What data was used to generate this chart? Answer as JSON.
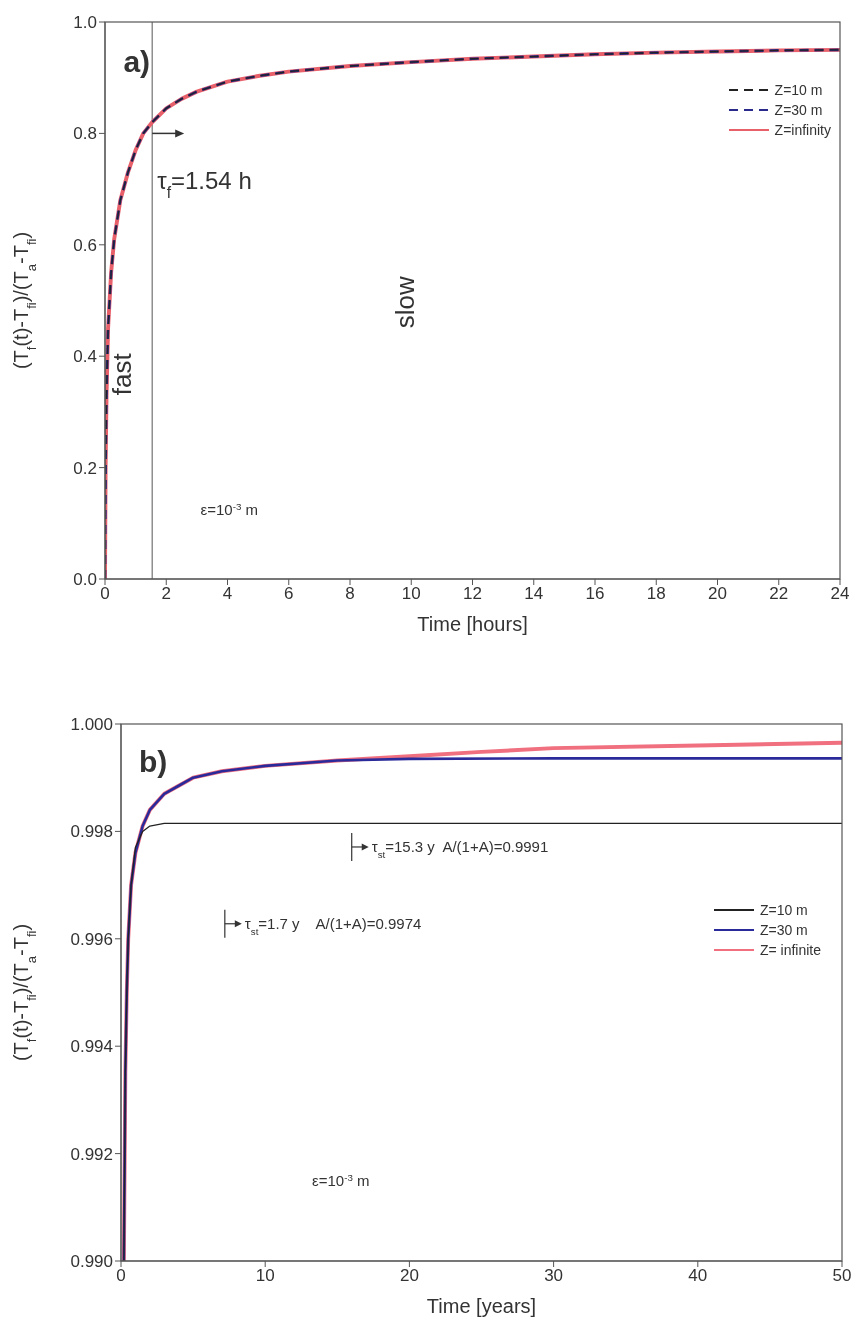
{
  "chart_data": [
    {
      "type": "line",
      "xlabel": "Time [hours]",
      "ylabel": "(T$_{f}$(t)-T$_{fi}$)/(T$_{a}$-T$_{fi}$)",
      "xlim": [
        0,
        24
      ],
      "xticks": [
        0,
        2,
        4,
        6,
        8,
        10,
        12,
        14,
        16,
        18,
        20,
        22,
        24
      ],
      "ylim": [
        0,
        1
      ],
      "yticks": [
        {
          "value": 0,
          "label": "0.0"
        },
        {
          "value": 0.2,
          "label": "0.2"
        },
        {
          "value": 0.4,
          "label": "0.4"
        },
        {
          "value": 0.6,
          "label": "0.6"
        },
        {
          "value": 0.8,
          "label": "0.8"
        },
        {
          "value": 1,
          "label": "1.0"
        }
      ],
      "legend": "top right",
      "grid": false,
      "marker": "none",
      "ref_lines": [
        {
          "axis": "x",
          "value": 1.54,
          "label": "τ$_{f}$=1.54 h",
          "color": "#555555"
        }
      ],
      "annotations": [
        "a)",
        "fast",
        "slow",
        "ε=10$^{-3}$ m"
      ],
      "series": [
        {
          "name": "Z=10 m",
          "color": "#222222",
          "line_style": "dashed",
          "x": [
            0,
            0.02,
            0.05,
            0.1,
            0.2,
            0.3,
            0.5,
            0.75,
            1,
            1.25,
            1.54,
            2,
            2.5,
            3,
            4,
            5,
            6,
            8,
            10,
            12,
            14,
            16,
            18,
            20,
            22,
            24
          ],
          "values": [
            0,
            0.2,
            0.33,
            0.45,
            0.55,
            0.61,
            0.68,
            0.73,
            0.77,
            0.8,
            0.82,
            0.845,
            0.862,
            0.875,
            0.893,
            0.903,
            0.911,
            0.921,
            0.928,
            0.934,
            0.938,
            0.942,
            0.945,
            0.947,
            0.949,
            0.95
          ]
        },
        {
          "name": "Z=30 m",
          "color": "#2a2a8a",
          "line_style": "dashed",
          "x": [
            0,
            0.02,
            0.05,
            0.1,
            0.2,
            0.3,
            0.5,
            0.75,
            1,
            1.25,
            1.54,
            2,
            2.5,
            3,
            4,
            5,
            6,
            8,
            10,
            12,
            14,
            16,
            18,
            20,
            22,
            24
          ],
          "values": [
            0,
            0.2,
            0.33,
            0.45,
            0.55,
            0.61,
            0.68,
            0.73,
            0.77,
            0.8,
            0.82,
            0.845,
            0.862,
            0.875,
            0.893,
            0.903,
            0.911,
            0.921,
            0.928,
            0.934,
            0.938,
            0.942,
            0.945,
            0.947,
            0.949,
            0.95
          ]
        },
        {
          "name": "Z=infinity",
          "color": "#e8606a",
          "line_style": "solid",
          "x": [
            0,
            0.02,
            0.05,
            0.1,
            0.2,
            0.3,
            0.5,
            0.75,
            1,
            1.25,
            1.54,
            2,
            2.5,
            3,
            4,
            5,
            6,
            8,
            10,
            12,
            14,
            16,
            18,
            20,
            22,
            24
          ],
          "values": [
            0,
            0.2,
            0.33,
            0.45,
            0.55,
            0.61,
            0.68,
            0.73,
            0.77,
            0.8,
            0.82,
            0.845,
            0.862,
            0.875,
            0.893,
            0.903,
            0.911,
            0.921,
            0.928,
            0.934,
            0.938,
            0.942,
            0.945,
            0.947,
            0.949,
            0.95
          ]
        }
      ]
    },
    {
      "type": "line",
      "xlabel": "Time [years]",
      "ylabel": "(T$_{f}$(t)-T$_{fi}$)/(T$_{a}$-T$_{fi}$)",
      "xlim": [
        0,
        50
      ],
      "xticks": [
        0,
        10,
        20,
        30,
        40,
        50
      ],
      "ylim": [
        0.99,
        1
      ],
      "yticks": [
        {
          "value": 0.99,
          "label": "0.990"
        },
        {
          "value": 0.992,
          "label": "0.992"
        },
        {
          "value": 0.994,
          "label": "0.994"
        },
        {
          "value": 0.996,
          "label": "0.996"
        },
        {
          "value": 0.998,
          "label": "0.998"
        },
        {
          "value": 1,
          "label": "1.000"
        }
      ],
      "legend": "right",
      "grid": false,
      "marker": "none",
      "annotations": [
        "b)",
        "τ$_{st}$=15.3 y  A/(1+A)=0.9991",
        "τ$_{st}$=1.7 y    A/(1+A)=0.9974",
        "ε=10$^{-3}$ m"
      ],
      "series": [
        {
          "name": "Z=10 m",
          "color": "#222222",
          "line_style": "solid",
          "x": [
            0.2,
            0.3,
            0.4,
            0.5,
            0.7,
            1,
            1.5,
            2,
            3,
            5,
            10,
            20,
            30,
            40,
            50
          ],
          "values": [
            0.99,
            0.9935,
            0.995,
            0.996,
            0.997,
            0.9977,
            0.998,
            0.9981,
            0.99815,
            0.99815,
            0.99815,
            0.99815,
            0.99815,
            0.99815,
            0.99815
          ]
        },
        {
          "name": "Z=30 m",
          "color": "#2a2a9a",
          "line_style": "solid",
          "x": [
            0.2,
            0.3,
            0.4,
            0.5,
            0.7,
            1,
            1.5,
            2,
            3,
            4,
            5,
            7,
            10,
            15,
            20,
            30,
            40,
            50
          ],
          "values": [
            0.99,
            0.9935,
            0.995,
            0.996,
            0.997,
            0.9976,
            0.9981,
            0.9984,
            0.9987,
            0.99885,
            0.999,
            0.99912,
            0.99922,
            0.99932,
            0.99935,
            0.99936,
            0.99936,
            0.99936
          ]
        },
        {
          "name": "Z= infinite",
          "color": "#f07080",
          "line_style": "solid",
          "x": [
            0.2,
            0.3,
            0.4,
            0.5,
            0.7,
            1,
            1.5,
            2,
            3,
            4,
            5,
            7,
            10,
            15,
            20,
            25,
            30,
            40,
            50
          ],
          "values": [
            0.99,
            0.9935,
            0.995,
            0.996,
            0.997,
            0.9976,
            0.9981,
            0.9984,
            0.9987,
            0.99885,
            0.999,
            0.99912,
            0.99922,
            0.99932,
            0.9994,
            0.99948,
            0.99955,
            0.9996,
            0.99965
          ]
        }
      ]
    }
  ]
}
